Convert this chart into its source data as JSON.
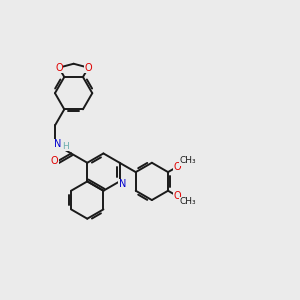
{
  "bg_color": "#ebebeb",
  "bond_color": "#1a1a1a",
  "atom_colors": {
    "O": "#e00000",
    "N": "#0000cc",
    "H": "#6aadad"
  },
  "figsize": [
    3.0,
    3.0
  ],
  "dpi": 100,
  "lw": 1.4,
  "font_size": 7.0,
  "shift": 2.2
}
